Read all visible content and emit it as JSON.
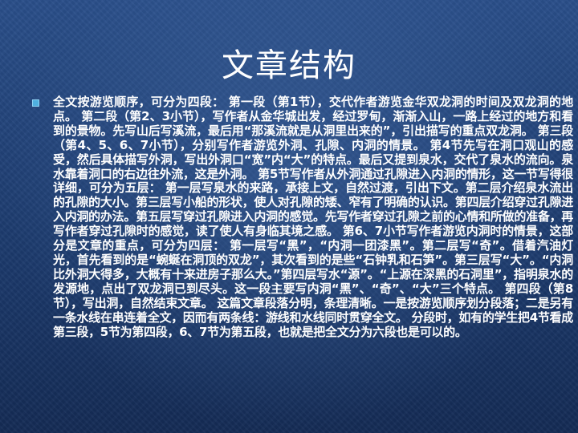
{
  "slide": {
    "title": "文章结构",
    "body": "全文按游览顺序，可分为四段：  第一段（第1节），交代作者游览金华双龙洞的时间及双龙洞的地点。 第二段（第2、3小节），写作者从金华城出发，经过罗甸，渐渐入山，一路上经过的地方和看到的景物。先写山后写溪流，最后用“那溪流就是从洞里出来的”，引出描写的重点双龙洞。 第三段（第4、5、6、7小节），分别写作者游览外洞、孔隙、内洞的情景。 第4节先写在洞口观山的感受，然后具体描写外洞，写出外洞口“宽”内“大”的特点。最后又提到泉水，交代了泉水的流向。泉水靠着洞口的右边往外流，这是外洞。 第5节写作者从外洞通过孔隙进入内洞的情形，这一节写得很详细，可分为五层：  第一层写泉水的来路，承接上文，自然过渡，引出下文。第二层介绍泉水流出的孔隙的大小。第三层写小船的形状，使人对孔隙的矮、窄有了明确的认识。第四层介绍穿过孔隙进入内洞的办法。第五层写穿过孔隙进入内洞的感觉。先写作者穿过孔隙之前的心情和所做的准备，再写作者穿过孔隙时的感觉，读了使人有身临其境之感。 第6、7小节写作者游览内洞时的情景，这部分是文章的重点，可分为四层：  第一层写“黑”，“内洞一团漆黑”。第二层写“奇”。借着汽油灯光，首先看到的是“蜿蜒在洞顶的双龙”，其次看到的是些“石钟乳和石笋”。第三层写“大”。“内洞比外洞大得多，大概有十来进房子那么大。”第四层写水“源”。“上源在深黑的石洞里”，指明泉水的发源地，点出了双龙洞已到尽头。这一段主要写内洞“黑”、“奇”、“大”三个特点。 第四段（第8节），写出洞，自然结束文章。 这篇文章段落分明，条理清晰。一是按游览顺序划分段落；二是另有一条水线在串连着全文，因而有两条线：游线和水线同时贯穿全文。 分段时，如有的学生把4节看成第三段，5节为第四段，6、7节为第五段，也就是把全文分为六段也是可以的。"
  },
  "colors": {
    "background": "#1f3f74",
    "text": "#ffffff",
    "bullet": "#4fb0e0"
  }
}
